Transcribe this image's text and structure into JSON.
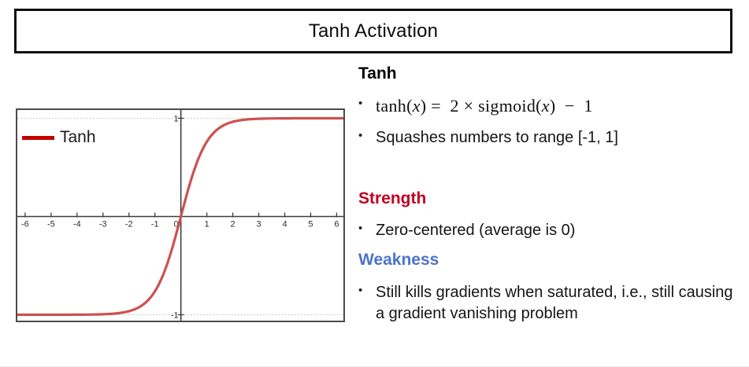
{
  "slide": {
    "title": "Tanh Activation",
    "bullet_char": "•"
  },
  "chart": {
    "legend_label": "Tanh",
    "legend_swatch_color": "#c00000"
  },
  "chart_data": {
    "type": "line",
    "title": "",
    "xlabel": "",
    "ylabel": "",
    "function": "tanh",
    "x": [
      -6,
      -5,
      -4,
      -3,
      -2,
      -1,
      0,
      1,
      2,
      3,
      4,
      5,
      6
    ],
    "y": [
      -1.0,
      -0.9999,
      -0.9993,
      -0.995,
      -0.964,
      -0.762,
      0,
      0.762,
      0.964,
      0.995,
      0.9993,
      0.9999,
      1.0
    ],
    "xlim": [
      -6.3,
      6.26
    ],
    "ylim": [
      -1.06,
      1.084
    ],
    "x_ticks": [
      -6,
      -5,
      -4,
      -3,
      -2,
      -1,
      0,
      1,
      2,
      3,
      4,
      5,
      6
    ],
    "y_ticks": [
      1,
      -1
    ],
    "grid": "dotted horizontal lines at y = 1 and y = -1",
    "legend_position": "top-left inside plot",
    "series": [
      {
        "name": "Tanh",
        "color": "#cc5150"
      }
    ],
    "axis_color": "#3d3d3d",
    "grid_color": "#bdbdbd",
    "tick_label_color": "#2e2e2e"
  },
  "content": {
    "tanh": {
      "heading": "Tanh",
      "formula_segments": [
        {
          "t": "tanh(",
          "i": 0
        },
        {
          "t": "x",
          "i": 1
        },
        {
          "t": ") =  2 × sigmoid(",
          "i": 0
        },
        {
          "t": "x",
          "i": 1
        },
        {
          "t": ")  −  1",
          "i": 0
        }
      ],
      "squashes": "Squashes numbers to range [-1, 1]"
    },
    "strength": {
      "heading": "Strength",
      "color": "#c00021",
      "bullet": "Zero-centered (average is 0)"
    },
    "weakness": {
      "heading": "Weakness",
      "color": "#4d73c9",
      "bullet": "Still kills gradients when saturated, i.e., still causing a gradient vanishing problem"
    }
  }
}
